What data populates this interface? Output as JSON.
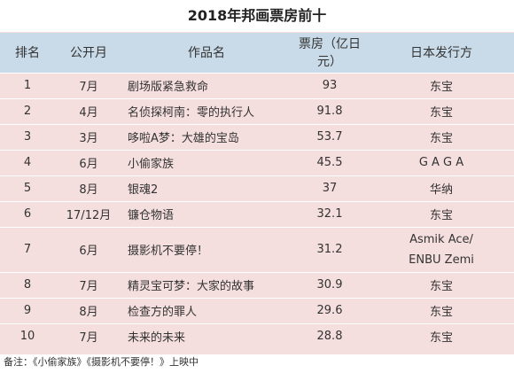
{
  "title": "2018年邦画票房前十",
  "headers": [
    "排名",
    "公开月",
    "作品名",
    "票房（亿日元）",
    "日本发行方"
  ],
  "rows": [
    {
      "rank": "1",
      "month": "7月",
      "film": "剧场版紧急救命",
      "box": "93",
      "dist": [
        "东宝"
      ]
    },
    {
      "rank": "2",
      "month": "4月",
      "film": "名侦探柯南：零的执行人",
      "box": "91.8",
      "dist": [
        "东宝"
      ]
    },
    {
      "rank": "3",
      "month": "3月",
      "film": "哆啦A梦：大雄的宝岛",
      "box": "53.7",
      "dist": [
        "东宝"
      ]
    },
    {
      "rank": "4",
      "month": "6月",
      "film": "小偷家族",
      "box": "45.5",
      "dist": [
        "G A G A"
      ]
    },
    {
      "rank": "5",
      "month": "8月",
      "film": "银魂2",
      "box": "37",
      "dist": [
        "华纳"
      ]
    },
    {
      "rank": "6",
      "month": "17/12月",
      "film": "镰仓物语",
      "box": "32.1",
      "dist": [
        "东宝"
      ]
    },
    {
      "rank": "7",
      "month": "6月",
      "film": "摄影机不要停！",
      "box": "31.2",
      "dist": [
        "Asmik Ace/",
        "ENBU Zemi"
      ]
    },
    {
      "rank": "8",
      "month": "7月",
      "film": "精灵宝可梦：大家的故事",
      "box": "30.9",
      "dist": [
        "东宝"
      ]
    },
    {
      "rank": "9",
      "month": "8月",
      "film": "检查方的罪人",
      "box": "29.6",
      "dist": [
        "东宝"
      ]
    },
    {
      "rank": "10",
      "month": "7月",
      "film": "未来的未来",
      "box": "28.8",
      "dist": [
        "东宝"
      ]
    }
  ],
  "note": "备注：《小偷家族》《摄影机不要停！》上映中",
  "colors": {
    "header_bg": "#c9dbe9",
    "body_bg": "#f4dede",
    "title_bg": "#ffffff"
  }
}
